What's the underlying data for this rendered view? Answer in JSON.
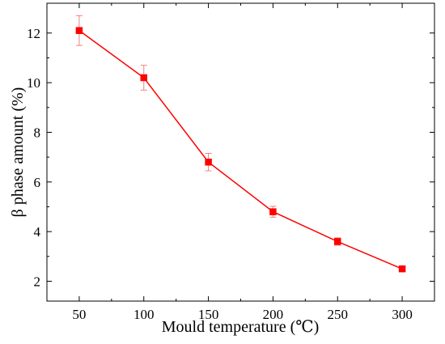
{
  "chart_data": {
    "type": "line",
    "title": "",
    "xlabel": "Mould temperature (℃)",
    "ylabel": "β phase amount (%)",
    "xlim": [
      25,
      325
    ],
    "ylim": [
      1.2,
      13.2
    ],
    "xticks": [
      50,
      100,
      150,
      200,
      250,
      300
    ],
    "yticks": [
      2,
      4,
      6,
      8,
      10,
      12
    ],
    "grid": false,
    "legend": "none",
    "series": [
      {
        "color": "#ff0000",
        "marker": "square",
        "x": [
          50,
          100,
          150,
          200,
          250,
          300
        ],
        "y": [
          12.1,
          10.2,
          6.8,
          4.8,
          3.6,
          2.5
        ],
        "err": [
          0.6,
          0.5,
          0.35,
          0.22,
          0.15,
          0.08
        ]
      }
    ]
  }
}
